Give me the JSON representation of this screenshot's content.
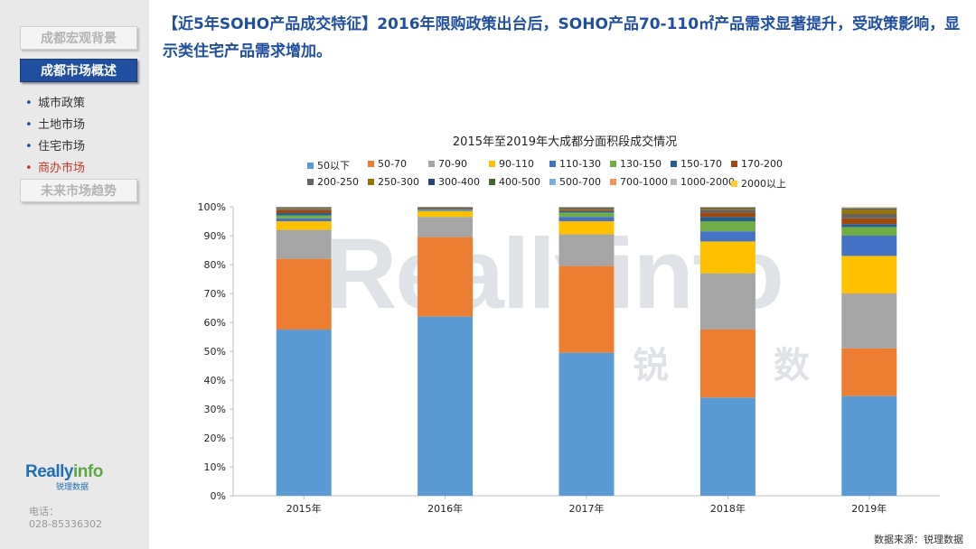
{
  "sidebar": {
    "nav": [
      "成都宏观背景",
      "成都市场概述",
      "未来市场趋势"
    ],
    "sub_items": [
      "城市政策",
      "土地市场",
      "住宅市场",
      "商办市场"
    ],
    "logo": {
      "brand_a": "Really",
      "brand_b": "info",
      "cn": "锐理数据"
    },
    "contact_label": "电话：",
    "contact_phone": "028-85336302"
  },
  "headline": "【近5年SOHO产品成交特征】2016年限购政策出台后，SOHO产品70-110㎡产品需求显著提升，受政策影响，显示类住宅产品需求增加。",
  "watermark": {
    "text": "Reallyinfo",
    "cn": "锐理数据"
  },
  "source": "数据来源：锐理数据",
  "chart_data": {
    "type": "bar",
    "stacked": true,
    "title": "2015年至2019年大成都分面积段成交情况",
    "categories": [
      "2015年",
      "2016年",
      "2017年",
      "2018年",
      "2019年"
    ],
    "ylim": [
      0,
      100
    ],
    "yticks": [
      "0%",
      "10%",
      "20%",
      "30%",
      "40%",
      "50%",
      "60%",
      "70%",
      "80%",
      "90%",
      "100%"
    ],
    "legend_position": "top",
    "series": [
      {
        "name": "50以下",
        "color": "#5b9bd5",
        "values": [
          57.5,
          62,
          49.5,
          34,
          34.5
        ]
      },
      {
        "name": "50-70",
        "color": "#ed7d31",
        "values": [
          24.5,
          27.5,
          30,
          23.5,
          16.5
        ]
      },
      {
        "name": "70-90",
        "color": "#a5a5a5",
        "values": [
          10,
          7,
          11,
          19.5,
          19
        ]
      },
      {
        "name": "90-110",
        "color": "#ffc000",
        "values": [
          3,
          2,
          4.5,
          11,
          13
        ]
      },
      {
        "name": "110-130",
        "color": "#4472c4",
        "values": [
          1,
          0.3,
          1.5,
          3.5,
          7
        ]
      },
      {
        "name": "130-150",
        "color": "#70ad47",
        "values": [
          1,
          0.2,
          1.5,
          3.5,
          3
        ]
      },
      {
        "name": "150-170",
        "color": "#255e91",
        "values": [
          0.8,
          0.2,
          0.5,
          1.5,
          1
        ]
      },
      {
        "name": "170-200",
        "color": "#9e480e",
        "values": [
          1,
          0.3,
          0.5,
          1.5,
          2
        ]
      },
      {
        "name": "200-250",
        "color": "#636363",
        "values": [
          0.5,
          0.2,
          0.3,
          1,
          1.5
        ]
      },
      {
        "name": "250-300",
        "color": "#997300",
        "values": [
          0.3,
          0.1,
          0.2,
          0.5,
          1.5
        ]
      },
      {
        "name": "300-400",
        "color": "#264478",
        "values": [
          0.2,
          0.1,
          0.2,
          0.2,
          0.3
        ]
      },
      {
        "name": "400-500",
        "color": "#43682b",
        "values": [
          0.1,
          0.05,
          0.1,
          0.1,
          0.2
        ]
      },
      {
        "name": "500-700",
        "color": "#7cafdd",
        "values": [
          0.05,
          0.03,
          0.1,
          0.1,
          0.1
        ]
      },
      {
        "name": "700-1000",
        "color": "#f1975a",
        "values": [
          0.03,
          0.01,
          0.05,
          0.05,
          0.2
        ]
      },
      {
        "name": "1000-2000",
        "color": "#b7b7b7",
        "values": [
          0.02,
          0.01,
          0.05,
          0.05,
          0.1
        ]
      },
      {
        "name": "2000以上",
        "color": "#ffcd33",
        "values": [
          0,
          0,
          0,
          0,
          0.1
        ]
      }
    ]
  }
}
